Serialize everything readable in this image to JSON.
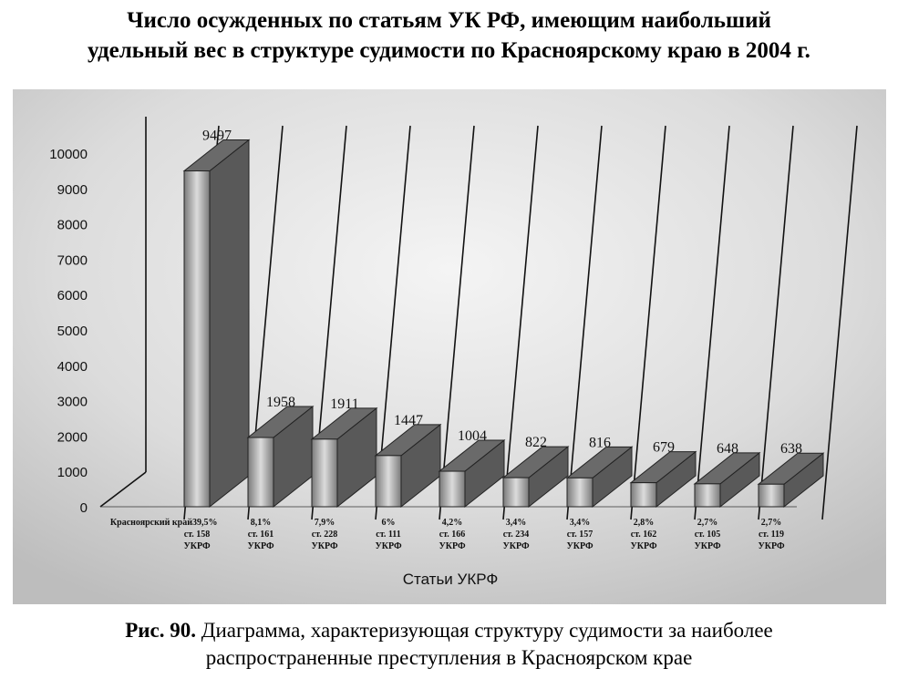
{
  "title_lines": [
    "Число осужденных по статьям УК РФ, имеющим наибольший",
    "удельный вес в структуре судимости по Красноярскому краю в 2004 г."
  ],
  "caption": {
    "label": "Рис. 90.",
    "line1": " Диаграмма, характеризующая структуру судимости за наиболее",
    "line2": "распространенные преступления в Красноярском крае"
  },
  "chart_data": {
    "type": "bar",
    "title": "",
    "xlabel": "Статьи УКРФ",
    "ylabel": "",
    "ylim": [
      0,
      10000
    ],
    "yticks": [
      0,
      1000,
      2000,
      3000,
      4000,
      5000,
      6000,
      7000,
      8000,
      9000,
      10000
    ],
    "grid": true,
    "categories": [
      [
        "Красноярский край",
        "39,5%",
        "ст. 158",
        "УКРФ"
      ],
      [
        "8,1%",
        "ст. 161",
        "УКРФ"
      ],
      [
        "7,9%",
        "ст. 228",
        "УКРФ"
      ],
      [
        "6%",
        "ст. 111",
        "УКРФ"
      ],
      [
        "4,2%",
        "ст. 166",
        "УКРФ"
      ],
      [
        "3,4%",
        "ст. 234",
        "УКРФ"
      ],
      [
        "3,4%",
        "ст. 157",
        "УКРФ"
      ],
      [
        "2,8%",
        "ст. 162",
        "УКРФ"
      ],
      [
        "2,7%",
        "ст. 105",
        "УКРФ"
      ],
      [
        "2,7%",
        "ст. 119",
        "УКРФ"
      ]
    ],
    "values": [
      9497,
      1958,
      1911,
      1447,
      1004,
      822,
      816,
      679,
      648,
      638
    ],
    "data_labels": [
      "9497",
      "1958",
      "1911",
      "1447",
      "1004",
      "822",
      "816",
      "679",
      "648",
      "638"
    ]
  }
}
